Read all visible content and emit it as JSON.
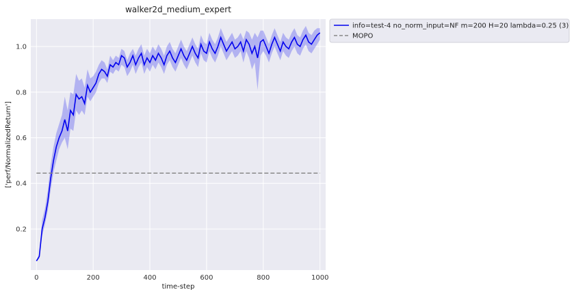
{
  "chart_data": {
    "type": "line",
    "title": "walker2d_medium_expert",
    "xlabel": "time-step",
    "ylabel": "['perf/NormalizedReturn']",
    "xlim": [
      -20,
      1020
    ],
    "ylim": [
      0.02,
      1.12
    ],
    "xticks": [
      0,
      200,
      400,
      600,
      800,
      1000
    ],
    "yticks": [
      0.2,
      0.4,
      0.6,
      0.8,
      1.0
    ],
    "xtick_labels": [
      "0",
      "200",
      "400",
      "600",
      "800",
      "1000"
    ],
    "ytick_labels": [
      "0.2",
      "0.4",
      "0.6",
      "0.8",
      "1.0"
    ],
    "grid": true,
    "legend_placement": "outside-top-right",
    "series": [
      {
        "name": "info=test-4 no_norm_input=NF m=200 H=20 lambda=0.25 (3)",
        "color": "#0000ee",
        "band_color": "#6f6ff0",
        "style": "solid",
        "x": [
          0,
          10,
          20,
          30,
          40,
          50,
          60,
          70,
          80,
          90,
          100,
          110,
          120,
          130,
          140,
          150,
          160,
          170,
          180,
          190,
          200,
          210,
          220,
          230,
          240,
          250,
          260,
          270,
          280,
          290,
          300,
          310,
          320,
          330,
          340,
          350,
          360,
          370,
          380,
          390,
          400,
          410,
          420,
          430,
          440,
          450,
          460,
          470,
          480,
          490,
          500,
          510,
          520,
          530,
          540,
          550,
          560,
          570,
          580,
          590,
          600,
          610,
          620,
          630,
          640,
          650,
          660,
          670,
          680,
          690,
          700,
          710,
          720,
          730,
          740,
          750,
          760,
          770,
          780,
          790,
          800,
          810,
          820,
          830,
          840,
          850,
          860,
          870,
          880,
          890,
          900,
          910,
          920,
          930,
          940,
          950,
          960,
          970,
          980,
          990,
          1000
        ],
        "y": [
          0.06,
          0.08,
          0.2,
          0.25,
          0.32,
          0.42,
          0.5,
          0.56,
          0.6,
          0.63,
          0.68,
          0.63,
          0.72,
          0.7,
          0.79,
          0.77,
          0.78,
          0.75,
          0.83,
          0.8,
          0.82,
          0.84,
          0.88,
          0.9,
          0.89,
          0.87,
          0.92,
          0.91,
          0.93,
          0.92,
          0.96,
          0.95,
          0.91,
          0.93,
          0.96,
          0.92,
          0.95,
          0.97,
          0.92,
          0.95,
          0.93,
          0.96,
          0.94,
          0.97,
          0.95,
          0.92,
          0.96,
          0.98,
          0.95,
          0.93,
          0.96,
          0.99,
          0.96,
          0.94,
          0.97,
          1.0,
          0.97,
          0.95,
          1.01,
          0.98,
          0.97,
          1.02,
          0.99,
          0.97,
          1.0,
          1.04,
          1.01,
          0.98,
          1.0,
          1.02,
          0.99,
          1.0,
          1.02,
          0.98,
          1.03,
          1.01,
          0.97,
          1.0,
          0.95,
          1.02,
          1.03,
          1.0,
          0.97,
          1.01,
          1.04,
          1.01,
          0.98,
          1.02,
          1.0,
          0.99,
          1.02,
          1.04,
          1.01,
          1.0,
          1.03,
          1.05,
          1.02,
          1.01,
          1.03,
          1.05,
          1.06
        ],
        "y_lower": [
          0.06,
          0.07,
          0.17,
          0.22,
          0.28,
          0.37,
          0.45,
          0.5,
          0.55,
          0.58,
          0.6,
          0.55,
          0.64,
          0.63,
          0.72,
          0.7,
          0.72,
          0.7,
          0.78,
          0.76,
          0.78,
          0.8,
          0.84,
          0.86,
          0.86,
          0.84,
          0.89,
          0.88,
          0.9,
          0.89,
          0.92,
          0.91,
          0.87,
          0.89,
          0.92,
          0.88,
          0.91,
          0.93,
          0.88,
          0.91,
          0.89,
          0.92,
          0.9,
          0.93,
          0.91,
          0.88,
          0.92,
          0.94,
          0.91,
          0.89,
          0.92,
          0.95,
          0.92,
          0.9,
          0.93,
          0.96,
          0.93,
          0.91,
          0.97,
          0.94,
          0.93,
          0.98,
          0.95,
          0.93,
          0.96,
          1.0,
          0.97,
          0.94,
          0.96,
          0.98,
          0.95,
          0.96,
          0.98,
          0.93,
          0.98,
          0.95,
          0.9,
          0.93,
          0.81,
          0.96,
          0.98,
          0.96,
          0.93,
          0.97,
          1.0,
          0.97,
          0.94,
          0.98,
          0.96,
          0.95,
          0.98,
          1.0,
          0.97,
          0.96,
          0.99,
          1.01,
          0.98,
          0.97,
          0.99,
          1.01,
          1.03
        ],
        "y_upper": [
          0.06,
          0.09,
          0.24,
          0.29,
          0.37,
          0.48,
          0.56,
          0.62,
          0.66,
          0.7,
          0.78,
          0.72,
          0.8,
          0.79,
          0.88,
          0.85,
          0.86,
          0.82,
          0.9,
          0.86,
          0.87,
          0.89,
          0.92,
          0.94,
          0.93,
          0.9,
          0.96,
          0.94,
          0.96,
          0.95,
          0.99,
          0.98,
          0.94,
          0.97,
          0.99,
          0.96,
          0.99,
          1.01,
          0.96,
          0.99,
          0.97,
          1.0,
          0.98,
          1.01,
          0.99,
          0.96,
          1.0,
          1.02,
          0.99,
          0.97,
          1.0,
          1.03,
          1.0,
          0.98,
          1.01,
          1.04,
          1.01,
          0.99,
          1.05,
          1.02,
          1.01,
          1.06,
          1.03,
          1.01,
          1.04,
          1.08,
          1.05,
          1.02,
          1.04,
          1.06,
          1.03,
          1.04,
          1.06,
          1.03,
          1.07,
          1.06,
          1.03,
          1.06,
          1.04,
          1.07,
          1.07,
          1.04,
          1.01,
          1.05,
          1.08,
          1.05,
          1.02,
          1.06,
          1.04,
          1.03,
          1.06,
          1.08,
          1.05,
          1.04,
          1.07,
          1.09,
          1.06,
          1.05,
          1.07,
          1.08,
          1.08
        ]
      },
      {
        "name": "MOPO",
        "color": "#888888",
        "style": "dashed",
        "x": [
          0,
          1000
        ],
        "y": [
          0.445,
          0.445
        ]
      }
    ]
  }
}
